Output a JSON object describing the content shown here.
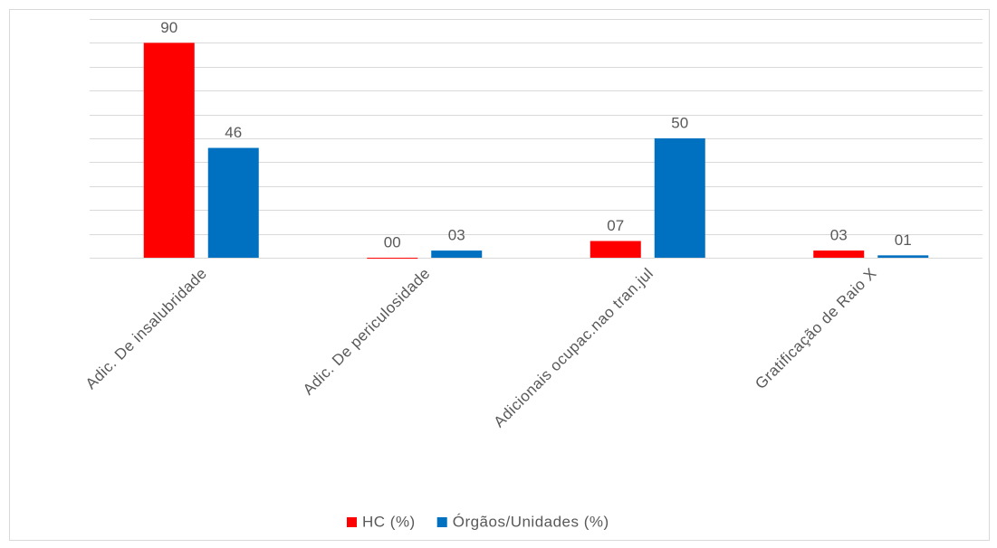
{
  "chart_data": {
    "type": "bar",
    "categories": [
      "Adic. De insalubridade",
      "Adic. De periculosidade",
      "Adicionais ocupac.nao tran.jul",
      "Gratificação de Raio X"
    ],
    "series": [
      {
        "name": "HC (%)",
        "color": "#ff0000",
        "values": [
          90,
          0,
          7,
          3
        ],
        "value_labels": [
          "90",
          "00",
          "07",
          "03"
        ]
      },
      {
        "name": "Órgãos/Unidades (%)",
        "color": "#0070c0",
        "values": [
          46,
          3,
          50,
          1
        ],
        "value_labels": [
          "46",
          "03",
          "50",
          "01"
        ]
      }
    ],
    "ylim": [
      0,
      100
    ],
    "yticks": [
      0,
      10,
      20,
      30,
      40,
      50,
      60,
      70,
      80,
      90,
      100
    ],
    "grid": true,
    "legend": "bottom"
  }
}
